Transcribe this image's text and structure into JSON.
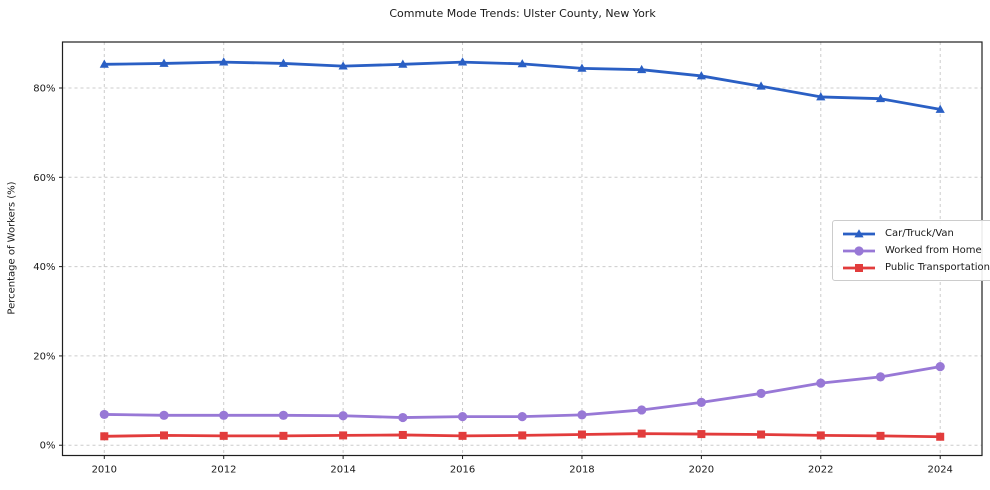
{
  "chart_data": {
    "type": "line",
    "title": "Commute Mode Trends: Ulster County, New York",
    "xlabel": "",
    "ylabel": "Percentage of Workers (%)",
    "x": [
      2010,
      2011,
      2012,
      2013,
      2014,
      2015,
      2016,
      2017,
      2018,
      2019,
      2020,
      2021,
      2022,
      2023,
      2024
    ],
    "x_ticks": [
      2010,
      2012,
      2014,
      2016,
      2018,
      2020,
      2022,
      2024
    ],
    "y_ticks": [
      0,
      20,
      40,
      60,
      80
    ],
    "y_tick_labels": [
      "0%",
      "20%",
      "40%",
      "60%",
      "80%"
    ],
    "xlim": [
      2009.3,
      2024.7
    ],
    "ylim": [
      -2.3,
      90.3
    ],
    "grid": true,
    "grid_style": "dashed",
    "legend_position": "right-center",
    "series": [
      {
        "name": "Car/Truck/Van",
        "color": "#2a5fc4",
        "marker": "triangle",
        "values": [
          85.3,
          85.5,
          85.8,
          85.5,
          84.9,
          85.3,
          85.8,
          85.4,
          84.4,
          84.1,
          82.7,
          80.4,
          78.0,
          77.6,
          75.2
        ]
      },
      {
        "name": "Worked from Home",
        "color": "#9878d6",
        "marker": "circle",
        "values": [
          6.9,
          6.7,
          6.7,
          6.7,
          6.6,
          6.2,
          6.4,
          6.4,
          6.8,
          7.9,
          9.6,
          11.6,
          13.9,
          15.3,
          17.6
        ]
      },
      {
        "name": "Public Transportation",
        "color": "#e23c3c",
        "marker": "square",
        "values": [
          2.0,
          2.2,
          2.1,
          2.1,
          2.2,
          2.3,
          2.1,
          2.2,
          2.4,
          2.6,
          2.5,
          2.4,
          2.2,
          2.1,
          1.9
        ]
      }
    ],
    "colors": {
      "grid": "#cccccc",
      "spine": "#1f1f1f",
      "tick_text": "#1a1a1a",
      "background": "#ffffff"
    }
  }
}
